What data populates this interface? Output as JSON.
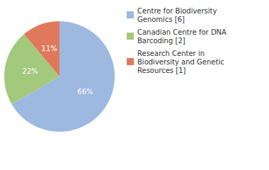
{
  "chart_data": {
    "type": "pie",
    "categories": [
      "Centre for Biodiversity Genomics [6]",
      "Canadian Centre for DNA Barcoding [2]",
      "Research Center in Biodiversity and Genetic Resources [1]"
    ],
    "values": [
      66,
      22,
      11
    ],
    "value_labels": [
      "66%",
      "22%",
      "11%"
    ],
    "colors": [
      "#9db9e0",
      "#a3c97c",
      "#e0795c"
    ],
    "data_labels": true,
    "legend": "top-right"
  }
}
